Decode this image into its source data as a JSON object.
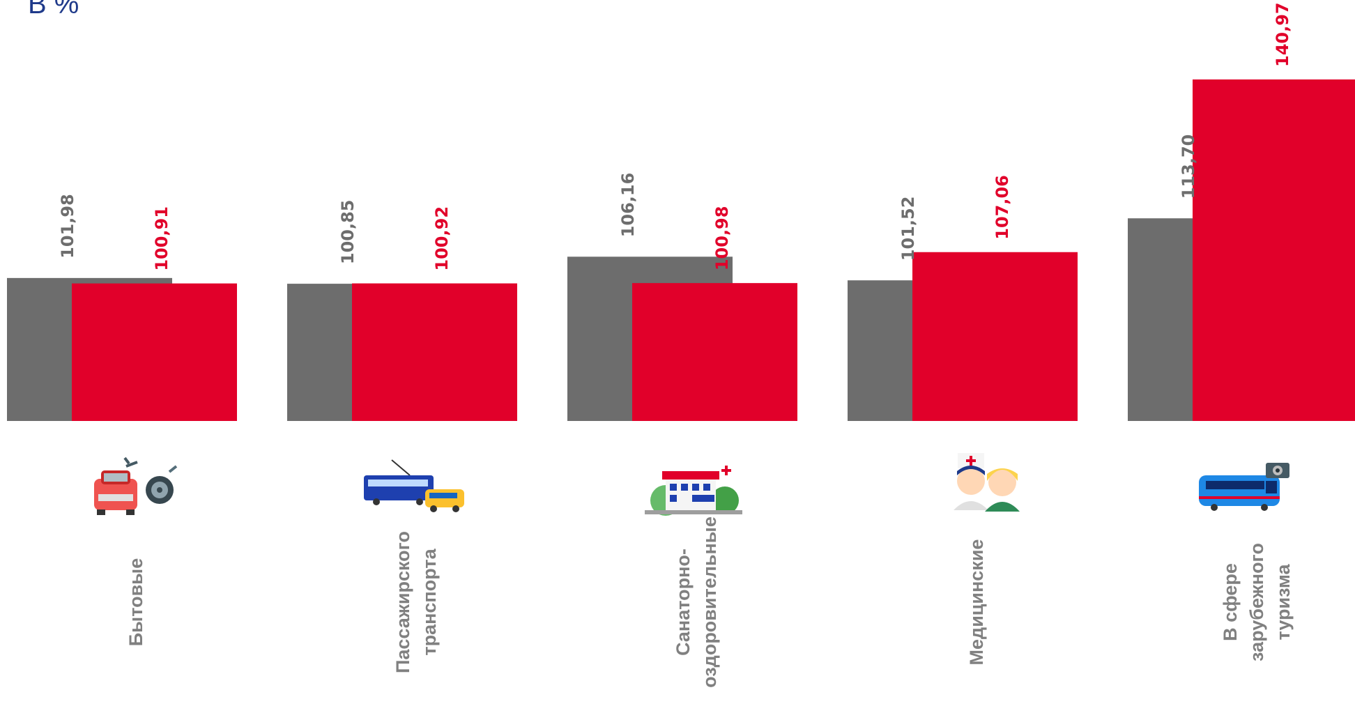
{
  "unit_label": "В %",
  "chart_data": {
    "type": "bar",
    "ylabel": "В %",
    "categories": [
      [
        "Бытовые"
      ],
      [
        "Пассажирского",
        "транспорта"
      ],
      [
        "Санаторно-",
        "оздоровительные"
      ],
      [
        "Медицинские"
      ],
      [
        "В сфере",
        "зарубежного",
        "туризма"
      ]
    ],
    "icons": [
      "car-repair-icon",
      "trolleybus-minibus-icon",
      "sanatorium-building-icon",
      "doctor-patient-icon",
      "tourist-bus-icon"
    ],
    "series": [
      {
        "values": [
          101.98,
          100.85,
          106.16,
          101.52,
          113.7
        ],
        "labels": [
          "101,98",
          "100,85",
          "106,16",
          "101,52",
          "113,70"
        ],
        "color": "#6d6d6d"
      },
      {
        "values": [
          100.91,
          100.92,
          100.98,
          107.06,
          140.97
        ],
        "labels": [
          "100,91",
          "100,92",
          "100,98",
          "107,06",
          "140,97"
        ],
        "color": "#e1002a"
      }
    ],
    "colors": {
      "gray_label": "#6d6d6d",
      "red_label": "#e1002a"
    }
  }
}
